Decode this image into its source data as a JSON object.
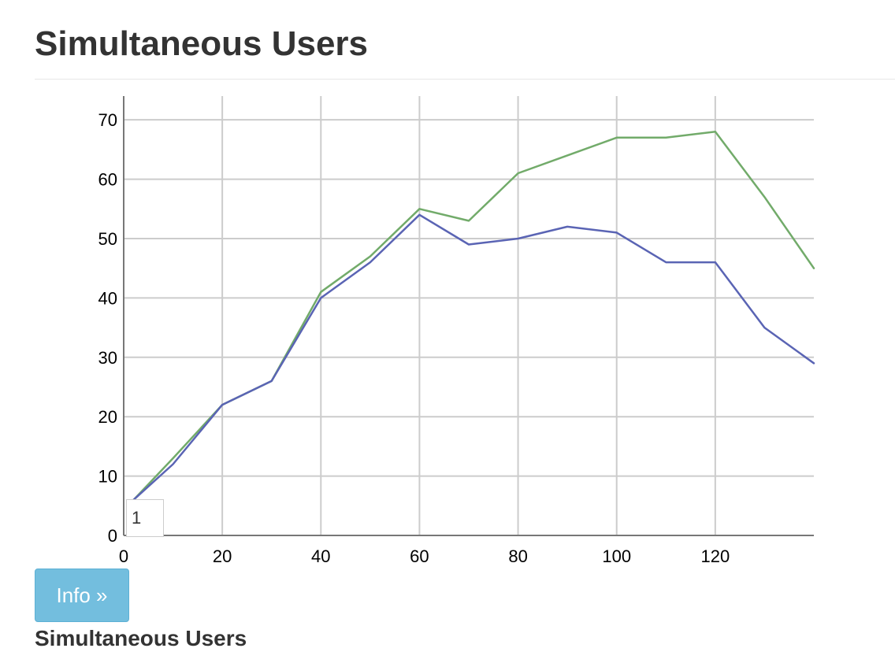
{
  "header": {
    "title": "Simultaneous Users"
  },
  "chart_data": {
    "type": "line",
    "title": "",
    "xlabel": "",
    "ylabel": "",
    "xlim": [
      0,
      140
    ],
    "ylim": [
      0,
      74
    ],
    "grid": true,
    "x_ticks": [
      0,
      20,
      40,
      60,
      80,
      100,
      120
    ],
    "y_ticks": [
      0,
      10,
      20,
      30,
      40,
      50,
      60,
      70
    ],
    "series": [
      {
        "color": "#72ab6a",
        "x": [
          2,
          10,
          20,
          30,
          40,
          50,
          60,
          70,
          80,
          90,
          100,
          110,
          120,
          130,
          140
        ],
        "y": [
          6,
          13,
          22,
          26,
          41,
          47,
          55,
          53,
          61,
          64,
          67,
          67,
          68,
          57,
          45
        ]
      },
      {
        "color": "#5a64b4",
        "x": [
          2,
          10,
          20,
          30,
          40,
          50,
          60,
          70,
          80,
          90,
          100,
          110,
          120,
          130,
          140
        ],
        "y": [
          6,
          12,
          22,
          26,
          40,
          46,
          54,
          49,
          50,
          52,
          51,
          46,
          46,
          35,
          29
        ]
      }
    ]
  },
  "controls": {
    "page_input_value": "1",
    "info_button_label": "Info »"
  },
  "footer": {
    "label": "Simultaneous Users"
  },
  "colors": {
    "grid": "#cccccc",
    "axis": "#777777",
    "button_bg": "#73bede"
  }
}
